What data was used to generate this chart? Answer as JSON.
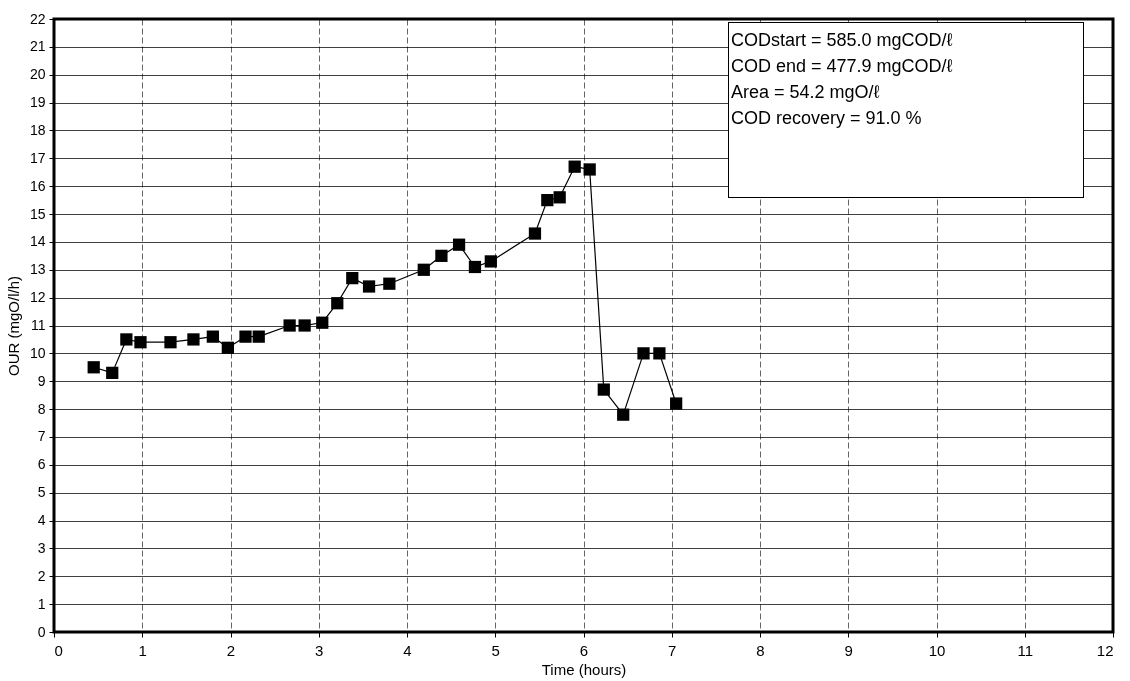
{
  "chart_data": {
    "type": "line",
    "xlabel": "Time (hours)",
    "ylabel": "OUR (mgO/l/h)",
    "x": [
      0.45,
      0.66,
      0.82,
      0.98,
      1.32,
      1.58,
      1.8,
      1.97,
      2.17,
      2.32,
      2.67,
      2.84,
      3.04,
      3.21,
      3.38,
      3.57,
      3.8,
      4.19,
      4.39,
      4.59,
      4.77,
      4.95,
      5.45,
      5.59,
      5.73,
      5.9,
      6.07,
      6.23,
      6.45,
      6.68,
      6.86,
      7.05
    ],
    "series": [
      {
        "color": "#000000",
        "values": [
          9.5,
          9.3,
          10.5,
          10.4,
          10.4,
          10.5,
          10.6,
          10.2,
          10.6,
          10.6,
          11.0,
          11.0,
          11.1,
          11.8,
          12.7,
          12.4,
          12.5,
          13.0,
          13.5,
          13.9,
          13.1,
          13.3,
          14.3,
          15.5,
          15.6,
          16.7,
          16.6,
          8.7,
          7.8,
          10.0,
          10.0,
          8.2
        ]
      }
    ],
    "xlim": [
      0,
      12
    ],
    "xticks": [
      0,
      1,
      2,
      3,
      4,
      5,
      6,
      7,
      8,
      9,
      10,
      11,
      12
    ],
    "ylim": [
      0,
      22
    ],
    "yticks": [
      0,
      1,
      2,
      3,
      4,
      5,
      6,
      7,
      8,
      9,
      10,
      11,
      12,
      13,
      14,
      15,
      16,
      17,
      18,
      19,
      20,
      21,
      22
    ],
    "grid": true,
    "marker": "square",
    "line_style": "solid",
    "legend": false,
    "annotations": [
      "CODstart = 585.0 mgCOD/ℓ",
      "COD end = 477.9 mgCOD/ℓ",
      "Area = 54.2 mgO/ℓ",
      "COD recovery = 91.0 %"
    ]
  }
}
